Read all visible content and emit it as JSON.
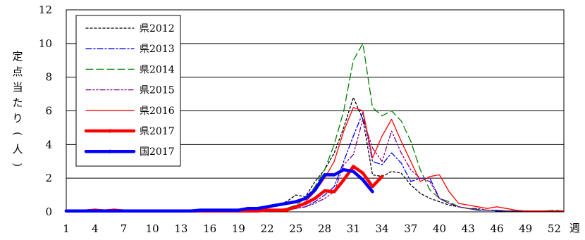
{
  "chart_data": {
    "type": "line",
    "ylabel": "定点当たり(人)",
    "xlabel": "週",
    "ylim": [
      0,
      12
    ],
    "yticks": [
      0,
      2,
      4,
      6,
      8,
      10,
      12
    ],
    "xlim": [
      1,
      53
    ],
    "xticks": [
      1,
      4,
      7,
      10,
      13,
      16,
      19,
      22,
      25,
      28,
      31,
      34,
      37,
      40,
      43,
      46,
      49,
      52
    ],
    "grid": "horizontal",
    "legend_position": "top-left",
    "series": [
      {
        "name": "県2012",
        "color": "#000000",
        "dash": "3,3",
        "width": 1.3,
        "x": [
          1,
          2,
          3,
          4,
          5,
          6,
          7,
          8,
          9,
          10,
          11,
          12,
          13,
          14,
          15,
          16,
          17,
          18,
          19,
          20,
          21,
          22,
          23,
          24,
          25,
          26,
          27,
          28,
          29,
          30,
          31,
          32,
          33,
          34,
          35,
          36,
          37,
          38,
          39,
          40,
          41,
          42,
          43,
          44,
          45,
          46,
          47,
          48,
          49,
          50,
          51,
          52,
          53
        ],
        "y": [
          0.1,
          0.1,
          0.1,
          0.15,
          0.1,
          0.1,
          0.1,
          0.1,
          0.1,
          0.05,
          0.05,
          0.05,
          0.05,
          0.05,
          0.05,
          0.05,
          0.05,
          0.05,
          0.05,
          0.1,
          0.1,
          0.2,
          0.4,
          0.6,
          1.0,
          0.9,
          1.8,
          2.5,
          3.5,
          5.0,
          6.8,
          5.5,
          2.2,
          2.1,
          2.4,
          2.3,
          1.6,
          1.1,
          0.8,
          0.6,
          0.4,
          0.3,
          0.2,
          0.1,
          0.1,
          0.05,
          0.05,
          0.05,
          0.05,
          0.05,
          0.05,
          0.05,
          0.05
        ]
      },
      {
        "name": "県2013",
        "color": "#0000ff",
        "dash": "8,3,2,3",
        "width": 1.3,
        "x": [
          1,
          2,
          3,
          4,
          5,
          6,
          7,
          8,
          9,
          10,
          11,
          12,
          13,
          14,
          15,
          16,
          17,
          18,
          19,
          20,
          21,
          22,
          23,
          24,
          25,
          26,
          27,
          28,
          29,
          30,
          31,
          32,
          33,
          34,
          35,
          36,
          37,
          38,
          39,
          40,
          41,
          42,
          43,
          44,
          45,
          46,
          47,
          48,
          49,
          50,
          51,
          52,
          53
        ],
        "y": [
          0.1,
          0.1,
          0.1,
          0.1,
          0.1,
          0.1,
          0.1,
          0.05,
          0.05,
          0.05,
          0.05,
          0.05,
          0.05,
          0.05,
          0.05,
          0.05,
          0.05,
          0.05,
          0.05,
          0.05,
          0.05,
          0.1,
          0.1,
          0.1,
          0.2,
          0.3,
          0.6,
          1.0,
          1.5,
          3.0,
          4.5,
          5.9,
          3.0,
          2.8,
          3.5,
          2.9,
          1.8,
          2.0,
          2.0,
          0.8,
          0.5,
          0.3,
          0.2,
          0.1,
          0.1,
          0.05,
          0.05,
          0.05,
          0.05,
          0.05,
          0.05,
          0.05,
          0.05
        ]
      },
      {
        "name": "県2014",
        "color": "#008000",
        "dash": "10,5",
        "width": 1.3,
        "x": [
          1,
          2,
          3,
          4,
          5,
          6,
          7,
          8,
          9,
          10,
          11,
          12,
          13,
          14,
          15,
          16,
          17,
          18,
          19,
          20,
          21,
          22,
          23,
          24,
          25,
          26,
          27,
          28,
          29,
          30,
          31,
          32,
          33,
          34,
          35,
          36,
          37,
          38,
          39,
          40,
          41,
          42,
          43,
          44,
          45,
          46,
          47,
          48,
          49,
          50,
          51,
          52,
          53
        ],
        "y": [
          0.1,
          0.1,
          0.1,
          0.1,
          0.1,
          0.1,
          0.1,
          0.1,
          0.1,
          0.05,
          0.05,
          0.05,
          0.05,
          0.05,
          0.05,
          0.05,
          0.05,
          0.05,
          0.05,
          0.05,
          0.1,
          0.1,
          0.1,
          0.2,
          0.4,
          0.8,
          1.5,
          2.5,
          4.0,
          6.0,
          9.0,
          10.0,
          6.2,
          5.7,
          6.0,
          5.4,
          4.2,
          2.5,
          1.3,
          0.8,
          0.6,
          0.3,
          0.2,
          0.15,
          0.1,
          0.1,
          0.05,
          0.05,
          0.05,
          0.05,
          0.05,
          0.1,
          0.05
        ]
      },
      {
        "name": "県2015",
        "color": "#800080",
        "dash": "7,3,2,3,2,3",
        "width": 1.3,
        "x": [
          1,
          2,
          3,
          4,
          5,
          6,
          7,
          8,
          9,
          10,
          11,
          12,
          13,
          14,
          15,
          16,
          17,
          18,
          19,
          20,
          21,
          22,
          23,
          24,
          25,
          26,
          27,
          28,
          29,
          30,
          31,
          32,
          33,
          34,
          35,
          36,
          37,
          38,
          39,
          40,
          41,
          42,
          43,
          44,
          45,
          46,
          47,
          48,
          49,
          50,
          51,
          52,
          53
        ],
        "y": [
          0.05,
          0.05,
          0.05,
          0.05,
          0.05,
          0.05,
          0.05,
          0.05,
          0.05,
          0.05,
          0.05,
          0.05,
          0.05,
          0.05,
          0.05,
          0.05,
          0.05,
          0.05,
          0.05,
          0.05,
          0.05,
          0.05,
          0.1,
          0.1,
          0.2,
          0.3,
          0.5,
          0.8,
          1.2,
          2.8,
          3.4,
          5.5,
          3.8,
          3.0,
          4.8,
          3.5,
          2.5,
          2.0,
          1.8,
          0.8,
          0.5,
          0.3,
          0.2,
          0.2,
          0.1,
          0.1,
          0.05,
          0.05,
          0.05,
          0.05,
          0.05,
          0.05,
          0.05
        ]
      },
      {
        "name": "県2016",
        "color": "#ff0000",
        "dash": "",
        "width": 1.3,
        "x": [
          1,
          2,
          3,
          4,
          5,
          6,
          7,
          8,
          9,
          10,
          11,
          12,
          13,
          14,
          15,
          16,
          17,
          18,
          19,
          20,
          21,
          22,
          23,
          24,
          25,
          26,
          27,
          28,
          29,
          30,
          31,
          32,
          33,
          34,
          35,
          36,
          37,
          38,
          39,
          40,
          41,
          42,
          43,
          44,
          45,
          46,
          47,
          48,
          49,
          50,
          51,
          52,
          53
        ],
        "y": [
          0.1,
          0.1,
          0.1,
          0.1,
          0.1,
          0.1,
          0.1,
          0.1,
          0.1,
          0.05,
          0.05,
          0.05,
          0.05,
          0.05,
          0.05,
          0.05,
          0.05,
          0.05,
          0.05,
          0.05,
          0.05,
          0.1,
          0.1,
          0.2,
          0.3,
          0.6,
          1.2,
          2.0,
          3.0,
          4.8,
          6.2,
          6.0,
          3.2,
          4.5,
          5.5,
          4.2,
          3.0,
          1.8,
          2.1,
          2.2,
          1.2,
          0.5,
          0.4,
          0.3,
          0.2,
          0.3,
          0.2,
          0.1,
          0.05,
          0.05,
          0.05,
          0.05,
          0.05
        ]
      },
      {
        "name": "県2017",
        "color": "#ff0000",
        "dash": "",
        "width": 4.5,
        "x": [
          1,
          2,
          3,
          4,
          5,
          6,
          7,
          8,
          9,
          10,
          11,
          12,
          13,
          14,
          15,
          16,
          17,
          18,
          19,
          20,
          21,
          22,
          23,
          24,
          25,
          26,
          27,
          28,
          29,
          30,
          31,
          32,
          33,
          34
        ],
        "y": [
          0.05,
          0.05,
          0.05,
          0.1,
          0.05,
          0.1,
          0.05,
          0.05,
          0.05,
          0.05,
          0.05,
          0.05,
          0.05,
          0.05,
          0.05,
          0.05,
          0.05,
          0.05,
          0.05,
          0.05,
          0.05,
          0.1,
          0.1,
          0.1,
          0.3,
          0.5,
          0.8,
          1.25,
          1.2,
          1.9,
          2.7,
          2.3,
          1.5,
          2.1
        ]
      },
      {
        "name": "国2017",
        "color": "#0000ff",
        "dash": "",
        "width": 4.5,
        "x": [
          1,
          2,
          3,
          4,
          5,
          6,
          7,
          8,
          9,
          10,
          11,
          12,
          13,
          14,
          15,
          16,
          17,
          18,
          19,
          20,
          21,
          22,
          23,
          24,
          25,
          26,
          27,
          28,
          29,
          30,
          31,
          32,
          33
        ],
        "y": [
          0.05,
          0.05,
          0.05,
          0.05,
          0.05,
          0.05,
          0.05,
          0.05,
          0.05,
          0.05,
          0.05,
          0.05,
          0.05,
          0.05,
          0.1,
          0.1,
          0.1,
          0.1,
          0.1,
          0.2,
          0.2,
          0.3,
          0.4,
          0.5,
          0.6,
          0.8,
          1.3,
          2.2,
          2.2,
          2.5,
          2.4,
          1.9,
          1.2
        ]
      }
    ]
  }
}
